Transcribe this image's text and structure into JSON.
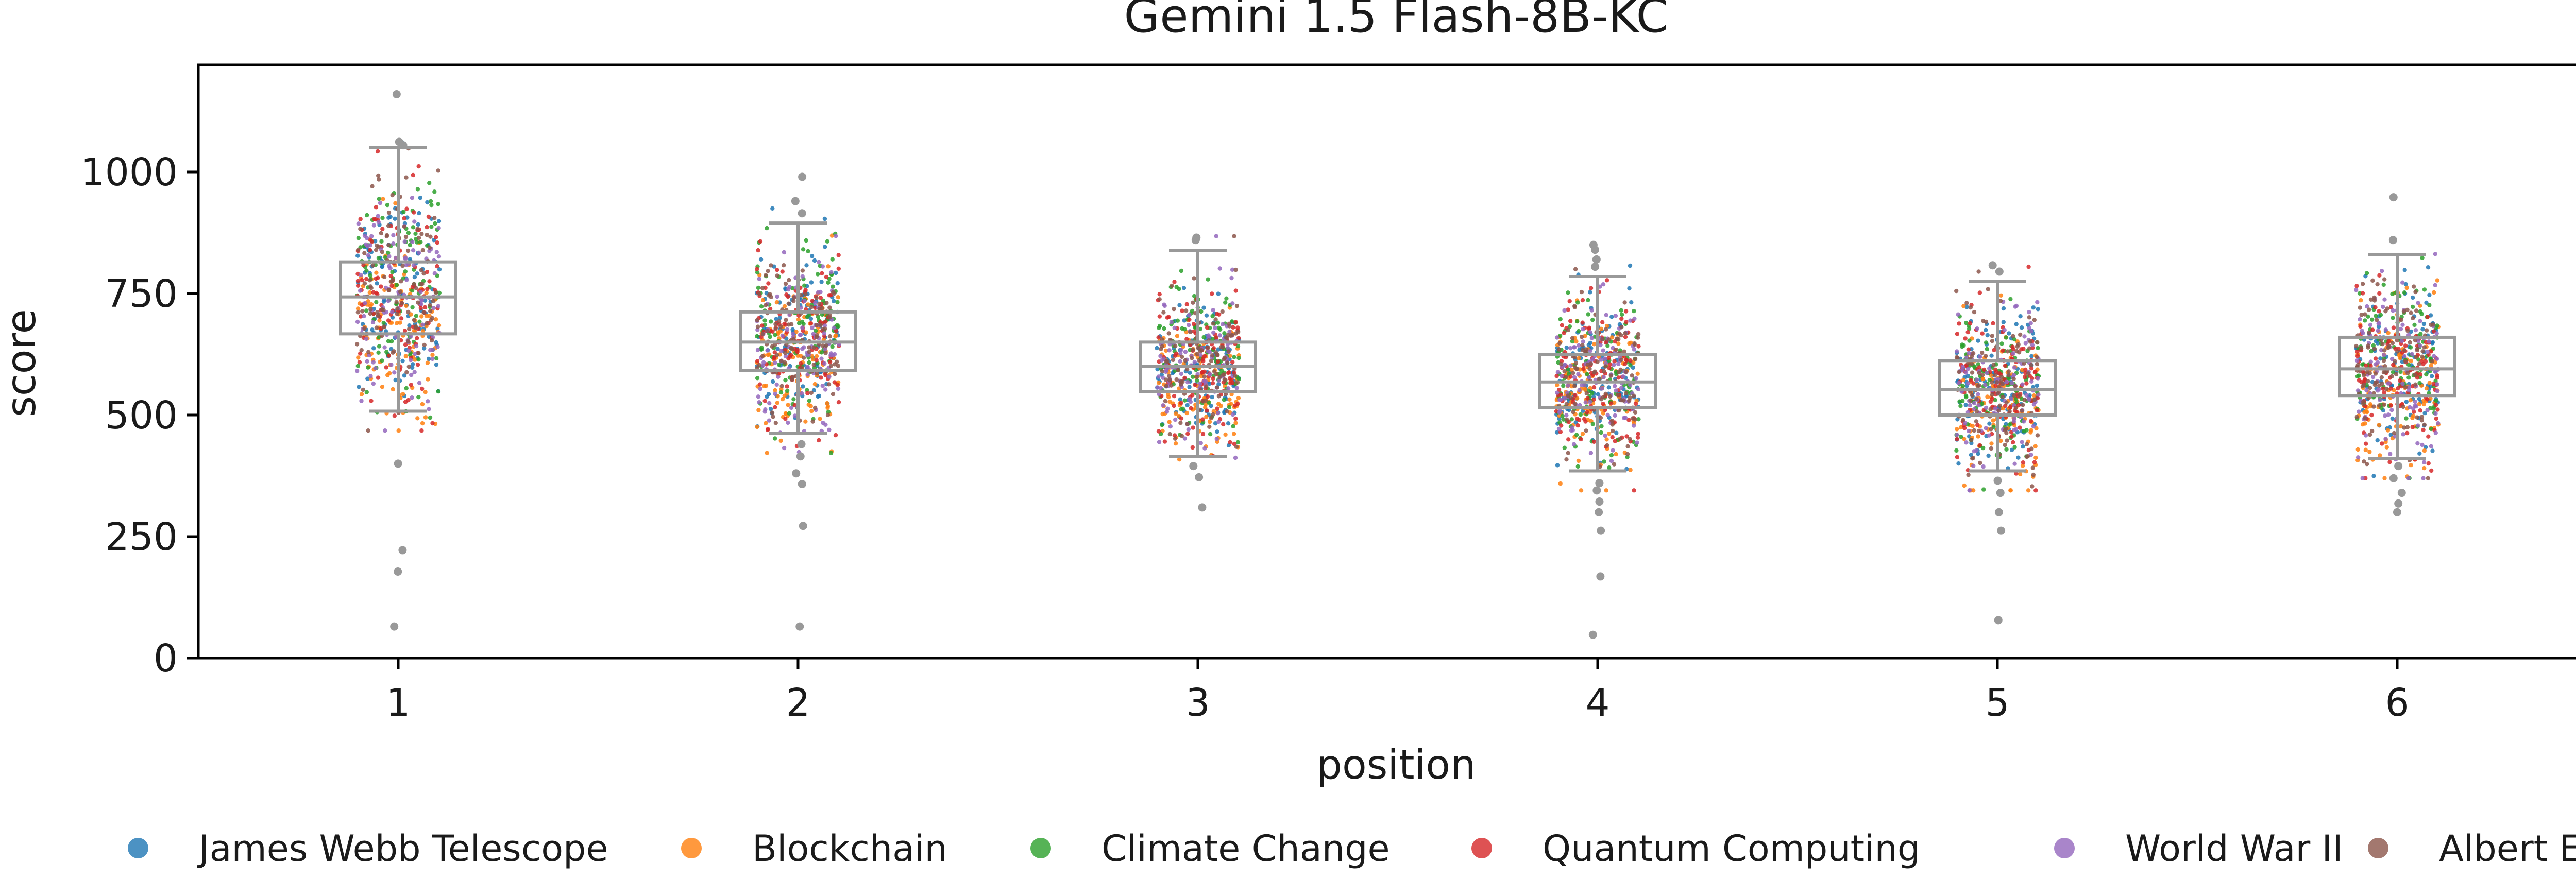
{
  "chart_data": {
    "type": "box+strip",
    "title": "Gemini 1.5 Flash-8B-KC",
    "xlabel": "position",
    "ylabel": "score",
    "categories": [
      "1",
      "2",
      "3",
      "4",
      "5",
      "6"
    ],
    "ylim": [
      0,
      1220
    ],
    "yticks": [
      0,
      250,
      500,
      750,
      1000
    ],
    "grid": false,
    "legend_position": "bottom",
    "box_color": "#999999",
    "boxes": [
      {
        "position": "1",
        "q1": 667,
        "median": 743,
        "q3": 815,
        "whisker_low": 508,
        "whisker_high": 1050,
        "outliers": [
          400,
          222,
          178,
          65,
          1160,
          1062,
          1055
        ]
      },
      {
        "position": "2",
        "q1": 592,
        "median": 650,
        "q3": 712,
        "whisker_low": 462,
        "whisker_high": 895,
        "outliers": [
          990,
          940,
          915,
          440,
          415,
          380,
          358,
          272,
          65
        ]
      },
      {
        "position": "3",
        "q1": 548,
        "median": 600,
        "q3": 650,
        "whisker_low": 415,
        "whisker_high": 838,
        "outliers": [
          865,
          860,
          395,
          372,
          310
        ]
      },
      {
        "position": "4",
        "q1": 515,
        "median": 568,
        "q3": 625,
        "whisker_low": 385,
        "whisker_high": 785,
        "outliers": [
          850,
          840,
          820,
          805,
          360,
          345,
          322,
          300,
          262,
          168,
          48
        ]
      },
      {
        "position": "5",
        "q1": 500,
        "median": 552,
        "q3": 612,
        "whisker_low": 385,
        "whisker_high": 775,
        "outliers": [
          808,
          795,
          365,
          340,
          300,
          262,
          78
        ]
      },
      {
        "position": "6",
        "q1": 540,
        "median": 595,
        "q3": 660,
        "whisker_low": 410,
        "whisker_high": 830,
        "outliers": [
          948,
          860,
          395,
          370,
          340,
          318,
          300
        ]
      }
    ],
    "series": [
      {
        "name": "James Webb Telescope",
        "color": "#1f77b4",
        "spread_offset": [
          15,
          10,
          5,
          5,
          5,
          5
        ]
      },
      {
        "name": "Blockchain",
        "color": "#ff7f0e",
        "spread_offset": [
          -70,
          -40,
          -30,
          -30,
          -25,
          -25
        ]
      },
      {
        "name": "Climate Change",
        "color": "#2ca02c",
        "spread_offset": [
          35,
          15,
          15,
          10,
          10,
          15
        ]
      },
      {
        "name": "Quantum Computing",
        "color": "#d62728",
        "spread_offset": [
          10,
          5,
          0,
          5,
          5,
          0
        ]
      },
      {
        "name": "World War II",
        "color": "#9467bd",
        "spread_offset": [
          0,
          0,
          0,
          0,
          0,
          0
        ]
      },
      {
        "name": "Albert Einstein",
        "color": "#8c564b",
        "spread_offset": [
          10,
          10,
          10,
          5,
          5,
          5
        ]
      }
    ]
  }
}
